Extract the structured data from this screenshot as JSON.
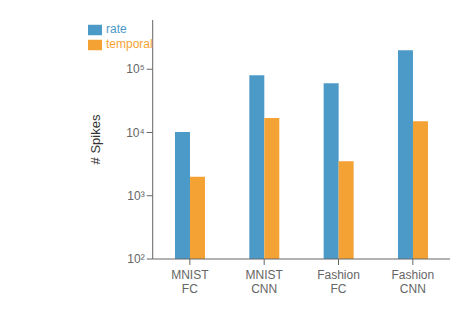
{
  "chart_data": {
    "type": "bar",
    "categories": [
      "MNIST\nFC",
      "MNIST\nCNN",
      "Fashion\nFC",
      "Fashion\nCNN"
    ],
    "series": [
      {
        "name": "rate",
        "color": "#4C9AC8",
        "values": [
          10200,
          80000,
          60000,
          200000
        ]
      },
      {
        "name": "temporal",
        "color": "#F5A234",
        "values": [
          2000,
          17000,
          3500,
          15000
        ]
      }
    ],
    "ylabel": "# Spikes",
    "log": "y",
    "ylim": [
      100,
      600000
    ],
    "yticks": [
      {
        "value": 100,
        "label": "10²"
      },
      {
        "value": 1000,
        "label": "10³"
      },
      {
        "value": 10000,
        "label": "10⁴"
      },
      {
        "value": 100000,
        "label": "10⁵"
      }
    ],
    "legend": "upper left",
    "grid": false
  }
}
